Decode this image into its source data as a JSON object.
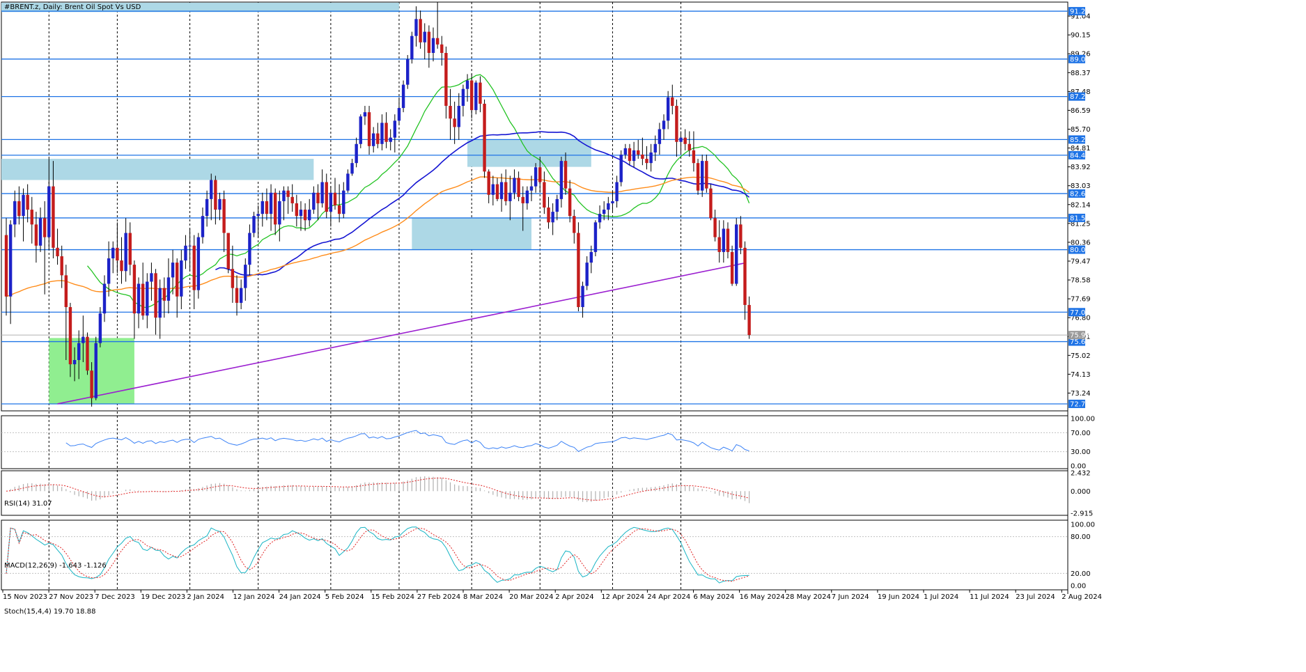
{
  "header": {
    "title": "#BRENT.z, Daily:  Brent Oil Spot Vs USD",
    "rsi_label": "RSI(14) 31.07",
    "macd_label": "MACD(12,26,9) -1.643 -1.126",
    "stoch_label": "Stoch(15,4,4) 19.70 18.88"
  },
  "colors": {
    "bull": "#1c22c8",
    "bear": "#c41c1c",
    "wick": "#000000",
    "ma_short": "#22c322",
    "ma_mid": "#1414d2",
    "ma_long": "#ff8c1a",
    "trendline": "#9b1fd0",
    "level_line": "#1e73e6",
    "level_label_bg": "#1e73e6",
    "rsi": "#3b82f6",
    "stoch_main": "#17b4c4",
    "stoch_signal": "#e02020",
    "macd_signal": "#e02020",
    "macd_hist": "#b0b0b0",
    "zone_blue": "#add8e6",
    "zone_green": "#90ee90"
  },
  "chart_data": {
    "type": "candlestick",
    "symbol": "#BRENT.z",
    "timeframe": "Daily",
    "ylim": [
      72.4,
      91.7
    ],
    "price_ticks": [
      "91.04",
      "90.15",
      "89.26",
      "88.37",
      "87.48",
      "86.59",
      "85.70",
      "84.81",
      "83.92",
      "83.03",
      "82.14",
      "81.25",
      "80.36",
      "79.47",
      "78.58",
      "77.69",
      "76.80",
      "75.91",
      "75.02",
      "74.13",
      "73.24"
    ],
    "level_lines": [
      {
        "label": "91.27",
        "value": 91.27
      },
      {
        "label": "89.01",
        "value": 89.01
      },
      {
        "label": "87.24",
        "value": 87.24
      },
      {
        "label": "85.21",
        "value": 85.21
      },
      {
        "label": "84.47",
        "value": 84.47
      },
      {
        "label": "82.66",
        "value": 82.66
      },
      {
        "label": "81.51",
        "value": 81.51
      },
      {
        "label": "80.01",
        "value": 80.01
      },
      {
        "label": "77.06",
        "value": 77.06
      },
      {
        "label": "75.67",
        "value": 75.67
      },
      {
        "label": "72.73",
        "value": 72.73
      }
    ],
    "current_price": {
      "label": "75.98",
      "value": 75.98
    },
    "x_labels": [
      "15 Nov 2023",
      "27 Nov 2023",
      "7 Dec 2023",
      "19 Dec 2023",
      "2 Jan 2024",
      "12 Jan 2024",
      "24 Jan 2024",
      "5 Feb 2024",
      "15 Feb 2024",
      "27 Feb 2024",
      "8 Mar 2024",
      "20 Mar 2024",
      "2 Apr 2024",
      "12 Apr 2024",
      "24 Apr 2024",
      "6 May 2024",
      "16 May 2024",
      "28 May 2024",
      "7 Jun 2024",
      "19 Jun 2024",
      "1 Jul 2024",
      "11 Jul 2024",
      "23 Jul 2024",
      "2 Aug 2024"
    ],
    "vgrid_indexes": [
      10,
      26,
      43,
      59,
      76,
      92,
      109,
      125,
      142,
      158
    ],
    "zones": [
      {
        "color": "blue",
        "from_index": -2,
        "to_index": 92,
        "y_top": 91.67,
        "y_bottom": 91.23
      },
      {
        "color": "blue",
        "from_index": -2,
        "to_index": 72,
        "y_top": 84.3,
        "y_bottom": 83.3
      },
      {
        "color": "blue",
        "from_index": 95,
        "to_index": 123,
        "y_top": 81.51,
        "y_bottom": 80.01
      },
      {
        "color": "blue",
        "from_index": 108,
        "to_index": 137,
        "y_top": 85.21,
        "y_bottom": 83.92
      },
      {
        "color": "green",
        "from_index": 10,
        "to_index": 30,
        "y_top": 75.84,
        "y_bottom": 72.73
      }
    ],
    "trendline": {
      "from": {
        "index": 12,
        "value": 72.73
      },
      "to": {
        "index": 173,
        "value": 79.38
      }
    },
    "candles": [
      [
        80.7,
        81.5,
        76.9,
        77.8
      ],
      [
        77.8,
        81.4,
        76.5,
        81.2
      ],
      [
        81.2,
        82.8,
        80.6,
        82.3
      ],
      [
        82.3,
        83.0,
        81.2,
        81.6
      ],
      [
        81.6,
        82.9,
        80.4,
        82.6
      ],
      [
        82.6,
        83.1,
        81.3,
        81.9
      ],
      [
        81.9,
        82.5,
        80.3,
        81.2
      ],
      [
        81.2,
        81.8,
        79.4,
        80.2
      ],
      [
        80.2,
        82.0,
        79.9,
        81.5
      ],
      [
        81.5,
        82.3,
        77.9,
        80.6
      ],
      [
        80.6,
        84.3,
        80.0,
        83.0
      ],
      [
        83.0,
        84.2,
        79.6,
        80.1
      ],
      [
        80.1,
        81.0,
        79.3,
        79.7
      ],
      [
        79.7,
        80.2,
        78.2,
        78.8
      ],
      [
        78.8,
        79.3,
        74.8,
        77.3
      ],
      [
        77.3,
        77.5,
        74.0,
        74.6
      ],
      [
        74.6,
        75.4,
        73.8,
        74.8
      ],
      [
        74.8,
        76.2,
        73.9,
        75.6
      ],
      [
        75.6,
        76.9,
        74.7,
        75.9
      ],
      [
        75.9,
        76.1,
        74.1,
        74.3
      ],
      [
        74.3,
        74.7,
        72.6,
        73.0
      ],
      [
        73.0,
        75.9,
        72.9,
        75.6
      ],
      [
        75.6,
        77.3,
        75.4,
        77.0
      ],
      [
        77.0,
        78.8,
        76.6,
        78.4
      ],
      [
        78.4,
        80.4,
        77.8,
        79.6
      ],
      [
        79.6,
        80.4,
        78.9,
        80.1
      ],
      [
        80.1,
        81.3,
        78.9,
        79.5
      ],
      [
        79.5,
        80.6,
        78.4,
        79.0
      ],
      [
        79.0,
        81.5,
        78.5,
        80.8
      ],
      [
        80.8,
        81.3,
        78.8,
        79.3
      ],
      [
        79.3,
        79.5,
        75.8,
        77.0
      ],
      [
        77.0,
        78.7,
        76.3,
        78.4
      ],
      [
        78.4,
        79.4,
        76.7,
        76.9
      ],
      [
        76.9,
        78.9,
        76.3,
        78.5
      ],
      [
        78.5,
        79.4,
        77.6,
        78.9
      ],
      [
        78.9,
        79.1,
        76.0,
        76.8
      ],
      [
        76.8,
        78.6,
        75.8,
        78.2
      ],
      [
        78.2,
        78.7,
        76.8,
        77.6
      ],
      [
        77.6,
        79.6,
        77.0,
        78.7
      ],
      [
        78.7,
        80.0,
        77.9,
        79.4
      ],
      [
        79.4,
        79.6,
        76.8,
        77.8
      ],
      [
        77.8,
        80.0,
        77.2,
        79.5
      ],
      [
        79.5,
        80.7,
        79.1,
        80.2
      ],
      [
        80.2,
        81.0,
        79.0,
        80.2
      ],
      [
        80.2,
        80.7,
        77.2,
        78.1
      ],
      [
        78.1,
        80.8,
        77.7,
        80.6
      ],
      [
        80.6,
        82.0,
        80.3,
        81.6
      ],
      [
        81.6,
        82.8,
        81.1,
        82.4
      ],
      [
        82.4,
        83.6,
        81.4,
        83.3
      ],
      [
        83.3,
        83.5,
        81.2,
        81.9
      ],
      [
        81.9,
        82.7,
        81.4,
        82.4
      ],
      [
        82.4,
        82.8,
        79.9,
        80.8
      ],
      [
        80.8,
        80.8,
        78.9,
        79.1
      ],
      [
        79.1,
        80.2,
        77.5,
        78.2
      ],
      [
        78.2,
        78.8,
        76.9,
        77.5
      ],
      [
        77.5,
        78.6,
        77.2,
        78.2
      ],
      [
        78.2,
        79.6,
        77.6,
        79.3
      ],
      [
        79.3,
        81.2,
        78.8,
        80.8
      ],
      [
        80.8,
        81.8,
        80.6,
        81.6
      ],
      [
        81.6,
        82.1,
        80.6,
        81.7
      ],
      [
        81.7,
        82.7,
        81.1,
        82.3
      ],
      [
        82.3,
        82.9,
        81.4,
        81.7
      ],
      [
        81.7,
        83.1,
        80.9,
        82.7
      ],
      [
        82.7,
        82.9,
        80.7,
        81.2
      ],
      [
        81.2,
        82.8,
        80.4,
        82.3
      ],
      [
        82.3,
        83.0,
        81.4,
        82.8
      ],
      [
        82.8,
        83.0,
        81.7,
        82.5
      ],
      [
        82.5,
        83.1,
        81.8,
        82.2
      ],
      [
        82.2,
        82.6,
        81.1,
        81.6
      ],
      [
        81.6,
        82.3,
        80.9,
        81.9
      ],
      [
        81.9,
        82.2,
        80.9,
        81.4
      ],
      [
        81.4,
        82.4,
        81.1,
        81.9
      ],
      [
        81.9,
        83.0,
        81.7,
        82.7
      ],
      [
        82.7,
        83.1,
        81.4,
        82.2
      ],
      [
        82.2,
        83.8,
        82.0,
        83.2
      ],
      [
        83.2,
        83.6,
        81.5,
        81.8
      ],
      [
        81.8,
        83.0,
        81.1,
        82.7
      ],
      [
        82.7,
        83.4,
        81.9,
        82.1
      ],
      [
        82.1,
        83.1,
        81.3,
        81.7
      ],
      [
        81.7,
        83.2,
        81.5,
        82.8
      ],
      [
        82.8,
        83.8,
        82.7,
        83.6
      ],
      [
        83.6,
        84.3,
        83.5,
        84.1
      ],
      [
        84.1,
        85.3,
        83.9,
        85.0
      ],
      [
        85.0,
        86.4,
        84.8,
        86.3
      ],
      [
        86.3,
        86.8,
        85.9,
        86.5
      ],
      [
        86.5,
        86.8,
        84.5,
        84.9
      ],
      [
        84.9,
        85.8,
        84.6,
        85.5
      ],
      [
        85.5,
        86.0,
        84.8,
        85.0
      ],
      [
        85.0,
        86.4,
        84.7,
        86.0
      ],
      [
        86.0,
        86.5,
        84.8,
        85.1
      ],
      [
        85.1,
        85.7,
        84.7,
        85.3
      ],
      [
        85.3,
        86.4,
        84.6,
        86.1
      ],
      [
        86.1,
        87.2,
        85.9,
        86.7
      ],
      [
        86.7,
        88.0,
        86.5,
        87.8
      ],
      [
        87.8,
        89.2,
        87.6,
        89.0
      ],
      [
        89.0,
        90.3,
        88.8,
        90.1
      ],
      [
        90.1,
        91.5,
        89.6,
        90.9
      ],
      [
        90.9,
        91.3,
        89.5,
        89.8
      ],
      [
        89.8,
        90.7,
        89.0,
        90.3
      ],
      [
        90.3,
        90.6,
        88.6,
        89.3
      ],
      [
        89.3,
        90.5,
        88.9,
        90.0
      ],
      [
        90.0,
        91.7,
        89.5,
        89.7
      ],
      [
        89.7,
        90.1,
        88.7,
        89.3
      ],
      [
        89.3,
        89.6,
        86.2,
        86.8
      ],
      [
        86.8,
        87.6,
        85.2,
        86.2
      ],
      [
        86.2,
        87.0,
        85.0,
        85.8
      ],
      [
        85.8,
        87.4,
        85.2,
        86.8
      ],
      [
        86.8,
        87.8,
        86.3,
        87.6
      ],
      [
        87.6,
        88.3,
        87.0,
        88.0
      ],
      [
        88.0,
        88.3,
        86.2,
        86.6
      ],
      [
        86.6,
        88.0,
        86.4,
        87.9
      ],
      [
        87.9,
        88.2,
        86.5,
        86.9
      ],
      [
        86.9,
        87.1,
        83.4,
        83.7
      ],
      [
        83.7,
        83.8,
        82.2,
        82.6
      ],
      [
        82.6,
        83.5,
        82.1,
        83.1
      ],
      [
        83.1,
        83.4,
        82.3,
        82.4
      ],
      [
        82.4,
        83.6,
        81.8,
        83.2
      ],
      [
        83.2,
        83.8,
        82.1,
        82.3
      ],
      [
        82.3,
        83.5,
        81.4,
        82.7
      ],
      [
        82.7,
        83.8,
        82.4,
        83.4
      ],
      [
        83.4,
        83.7,
        82.3,
        82.5
      ],
      [
        82.5,
        83.0,
        80.9,
        82.2
      ],
      [
        82.2,
        83.0,
        81.9,
        82.8
      ],
      [
        82.8,
        83.5,
        82.3,
        83.0
      ],
      [
        83.0,
        84.1,
        82.7,
        83.9
      ],
      [
        83.9,
        84.4,
        82.7,
        83.2
      ],
      [
        83.2,
        83.7,
        81.7,
        82.0
      ],
      [
        82.0,
        82.5,
        81.0,
        81.3
      ],
      [
        81.3,
        82.2,
        80.7,
        81.8
      ],
      [
        81.8,
        82.6,
        81.4,
        82.4
      ],
      [
        82.4,
        84.4,
        82.0,
        84.2
      ],
      [
        84.2,
        84.6,
        82.6,
        82.9
      ],
      [
        82.9,
        83.3,
        81.3,
        81.6
      ],
      [
        81.6,
        81.9,
        80.3,
        80.8
      ],
      [
        80.8,
        81.3,
        77.1,
        77.3
      ],
      [
        77.3,
        78.5,
        76.8,
        78.3
      ],
      [
        78.3,
        79.7,
        78.1,
        79.4
      ],
      [
        79.4,
        80.2,
        78.9,
        79.9
      ],
      [
        79.9,
        81.4,
        79.7,
        81.3
      ],
      [
        81.3,
        82.1,
        81.0,
        81.7
      ],
      [
        81.7,
        82.3,
        81.4,
        81.9
      ],
      [
        81.9,
        82.5,
        81.4,
        82.2
      ],
      [
        82.2,
        82.8,
        81.8,
        82.3
      ],
      [
        82.3,
        83.5,
        82.0,
        83.2
      ],
      [
        83.2,
        84.7,
        83.0,
        84.5
      ],
      [
        84.5,
        85.0,
        84.3,
        84.8
      ],
      [
        84.8,
        85.0,
        84.0,
        84.2
      ],
      [
        84.2,
        85.1,
        83.9,
        84.7
      ],
      [
        84.7,
        85.2,
        84.3,
        84.5
      ],
      [
        84.5,
        85.3,
        84.0,
        84.3
      ],
      [
        84.3,
        84.9,
        83.8,
        84.1
      ],
      [
        84.1,
        85.0,
        83.7,
        84.6
      ],
      [
        84.6,
        85.4,
        84.2,
        85.0
      ],
      [
        85.0,
        86.0,
        84.5,
        85.7
      ],
      [
        85.7,
        86.4,
        85.2,
        86.1
      ],
      [
        86.1,
        87.5,
        85.7,
        87.2
      ],
      [
        87.2,
        87.8,
        86.4,
        86.8
      ],
      [
        86.8,
        87.1,
        84.4,
        85.1
      ],
      [
        85.1,
        85.6,
        84.5,
        85.3
      ],
      [
        85.3,
        85.7,
        84.7,
        85.0
      ],
      [
        85.0,
        85.6,
        84.4,
        84.7
      ],
      [
        84.7,
        85.6,
        83.7,
        84.1
      ],
      [
        84.1,
        84.3,
        82.6,
        82.8
      ],
      [
        82.8,
        84.5,
        82.5,
        84.2
      ],
      [
        84.2,
        84.5,
        82.7,
        82.9
      ],
      [
        82.9,
        83.1,
        81.4,
        81.5
      ],
      [
        81.5,
        81.9,
        80.4,
        80.6
      ],
      [
        80.6,
        81.4,
        79.4,
        79.9
      ],
      [
        79.9,
        81.4,
        79.4,
        81.0
      ],
      [
        81.0,
        81.3,
        79.6,
        79.9
      ],
      [
        79.9,
        80.2,
        78.3,
        78.4
      ],
      [
        78.4,
        81.5,
        78.3,
        81.2
      ],
      [
        81.2,
        81.6,
        79.8,
        80.1
      ],
      [
        80.1,
        80.4,
        76.7,
        77.4
      ],
      [
        77.4,
        77.8,
        75.8,
        75.98
      ]
    ],
    "indicators": {
      "rsi": {
        "label": "RSI(14)",
        "levels": [
          100,
          70,
          30,
          0
        ],
        "ticks": [
          "100.00",
          "70.00",
          "30.00",
          "0.00"
        ],
        "last": 31.07
      },
      "macd": {
        "label": "MACD(12,26,9)",
        "ticks": [
          "2.432",
          "0.000",
          "-2.915"
        ],
        "ylim": [
          -3.2,
          2.7
        ],
        "last_main": -1.643,
        "last_signal": -1.126
      },
      "stoch": {
        "label": "Stoch(15,4,4)",
        "levels": [
          100,
          80,
          20,
          0
        ],
        "ticks": [
          "100.00",
          "80.00",
          "20.00",
          "0.00"
        ],
        "last_main": 19.7,
        "last_signal": 18.88
      }
    }
  }
}
